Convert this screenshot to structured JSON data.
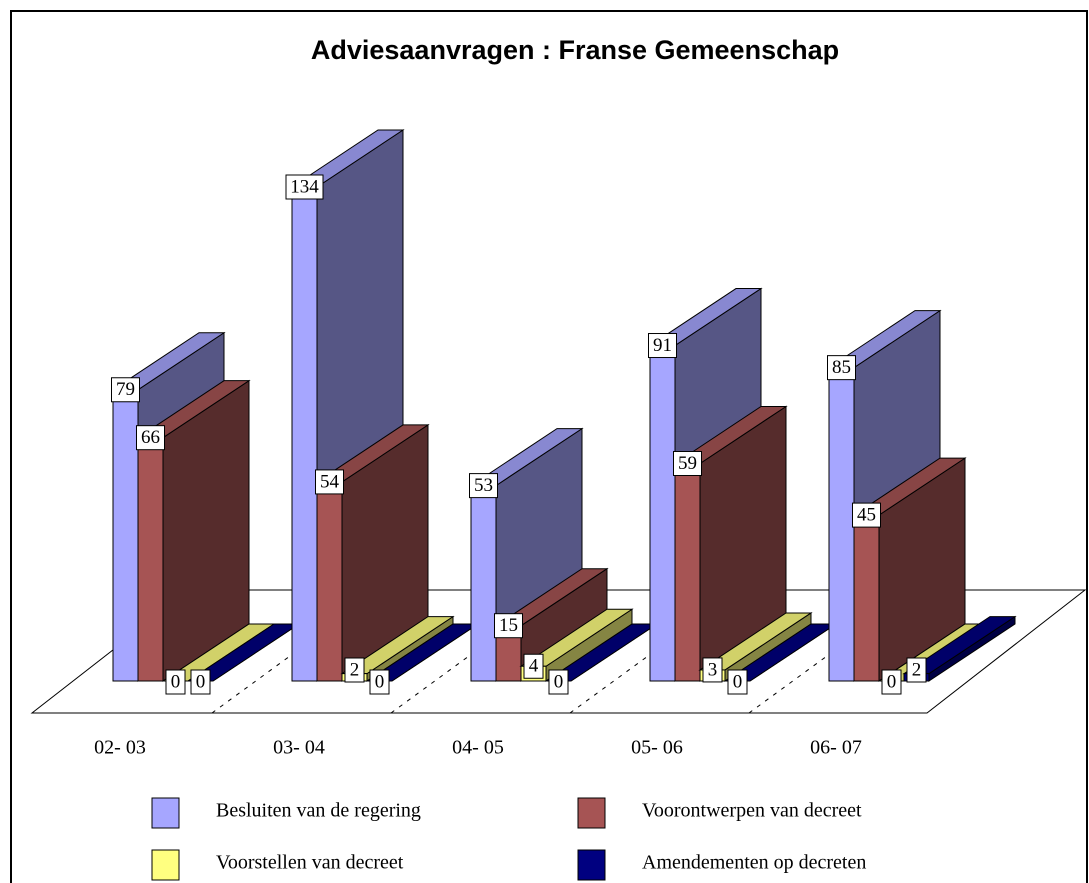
{
  "chart_data": {
    "type": "bar3d",
    "title": "Adviesaanvragen : Franse Gemeenschap",
    "categories": [
      "02- 03",
      "03- 04",
      "04- 05",
      "05- 06",
      "06- 07"
    ],
    "series": [
      {
        "name": "Besluiten van de regering",
        "color": "#a6a6ff",
        "values": [
          79,
          134,
          53,
          91,
          85
        ]
      },
      {
        "name": "Voorontwerpen van decreet",
        "color": "#a65454",
        "values": [
          66,
          54,
          15,
          59,
          45
        ]
      },
      {
        "name": "Voorstellen van decreet",
        "color": "#ffff80",
        "values": [
          0,
          2,
          4,
          3,
          0
        ]
      },
      {
        "name": "Amendementen op decreten",
        "color": "#000080",
        "values": [
          0,
          0,
          0,
          0,
          2
        ]
      }
    ]
  }
}
